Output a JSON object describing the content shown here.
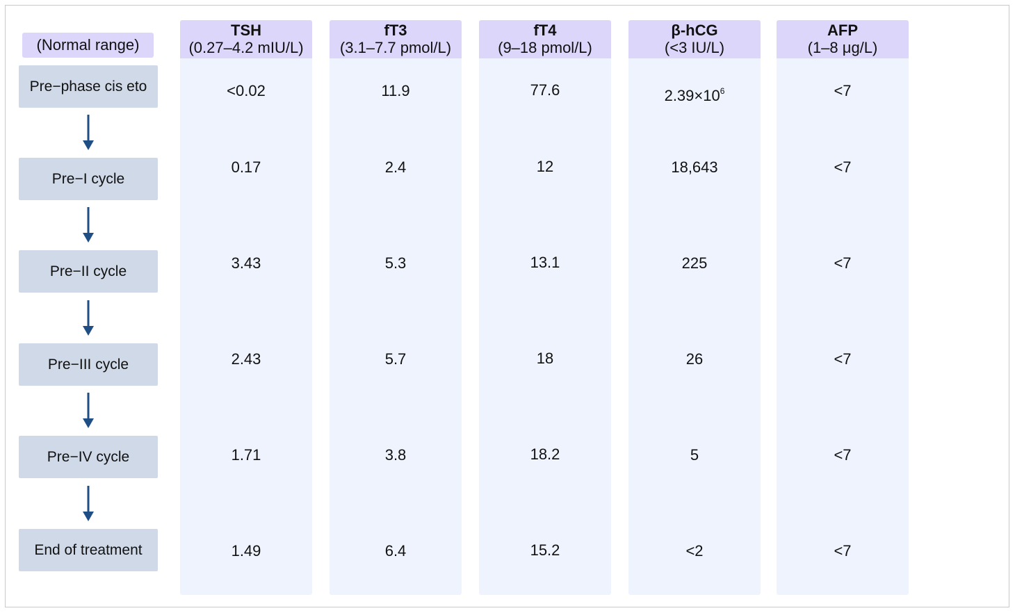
{
  "normal_range_label": "(Normal range)",
  "columns": [
    {
      "name": "TSH",
      "range": "(0.27–4.2 mIU/L)",
      "values": [
        "<0.02",
        "0.17",
        "3.43",
        "2.43",
        "1.71",
        "1.49"
      ]
    },
    {
      "name": "fT3",
      "range": "(3.1–7.7 pmol/L)",
      "values": [
        "11.9",
        "2.4",
        "5.3",
        "5.7",
        "3.8",
        "6.4"
      ]
    },
    {
      "name": "fT4",
      "range": "(9–18 pmol/L)",
      "values": [
        "77.6",
        "12",
        "13.1",
        "18",
        "18.2",
        "15.2"
      ]
    },
    {
      "name": "β-hCG",
      "range": "(<3 IU/L)",
      "values": [
        "2.39×10",
        "18,643",
        "225",
        "26",
        "5",
        "<2"
      ],
      "first_value_sup": "6"
    },
    {
      "name": "AFP",
      "range": "(1–8 μg/L)",
      "values": [
        "<7",
        "<7",
        "<7",
        "<7",
        "<7",
        "<7"
      ]
    }
  ],
  "steps": [
    "Pre−phase cis eto",
    "Pre−I cycle",
    "Pre−II cycle",
    "Pre−III cycle",
    "Pre−IV cycle",
    "End of treatment"
  ],
  "colors": {
    "header": "#dcd6fb",
    "column": "#eef3fd",
    "step": "#d0d9e8",
    "arrow": "#1f4e85"
  }
}
